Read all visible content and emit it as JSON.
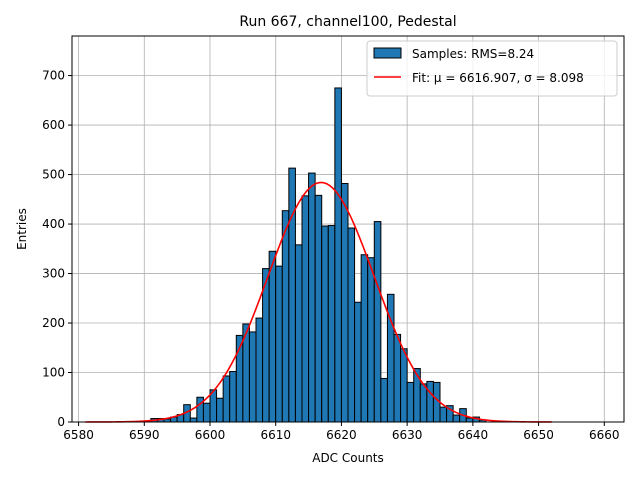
{
  "chart_data": {
    "type": "bar",
    "title": "Run 667, channel100, Pedestal",
    "xlabel": "ADC Counts",
    "ylabel": "Entries",
    "xlim": [
      6579,
      6663
    ],
    "ylim": [
      0,
      780
    ],
    "xticks": [
      6580,
      6590,
      6600,
      6610,
      6620,
      6630,
      6640,
      6650,
      6660
    ],
    "yticks": [
      0,
      100,
      200,
      300,
      400,
      500,
      600,
      700
    ],
    "grid": true,
    "legend_position": "top-right",
    "colors": {
      "bar_fill": "#1f77b4",
      "bar_edge": "#000000",
      "fit_line": "#ff0000",
      "grid": "#b0b0b0"
    },
    "histogram": {
      "name": "Samples: RMS=8.24",
      "bin_width": 1,
      "bin_starts": [
        6591,
        6592,
        6593,
        6594,
        6595,
        6596,
        6597,
        6598,
        6599,
        6600,
        6601,
        6602,
        6603,
        6604,
        6605,
        6606,
        6607,
        6608,
        6609,
        6610,
        6611,
        6612,
        6613,
        6614,
        6615,
        6616,
        6617,
        6618,
        6619,
        6620,
        6621,
        6622,
        6623,
        6624,
        6625,
        6626,
        6627,
        6628,
        6629,
        6630,
        6631,
        6632,
        6633,
        6634,
        6635,
        6636,
        6637,
        6638,
        6639,
        6640,
        6641
      ],
      "values": [
        7,
        7,
        6,
        10,
        15,
        35,
        8,
        50,
        38,
        65,
        48,
        93,
        102,
        175,
        198,
        182,
        210,
        310,
        345,
        315,
        427,
        513,
        358,
        457,
        503,
        458,
        396,
        397,
        675,
        482,
        392,
        242,
        338,
        332,
        405,
        88,
        258,
        177,
        148,
        80,
        108,
        77,
        82,
        80,
        30,
        33,
        14,
        27,
        8,
        10,
        4
      ]
    },
    "fit": {
      "name": "Fit: μ = 6616.907, σ = 8.098",
      "mu": 6616.907,
      "sigma": 8.098,
      "amplitude": 484,
      "x_range": [
        6581,
        6652
      ]
    }
  }
}
